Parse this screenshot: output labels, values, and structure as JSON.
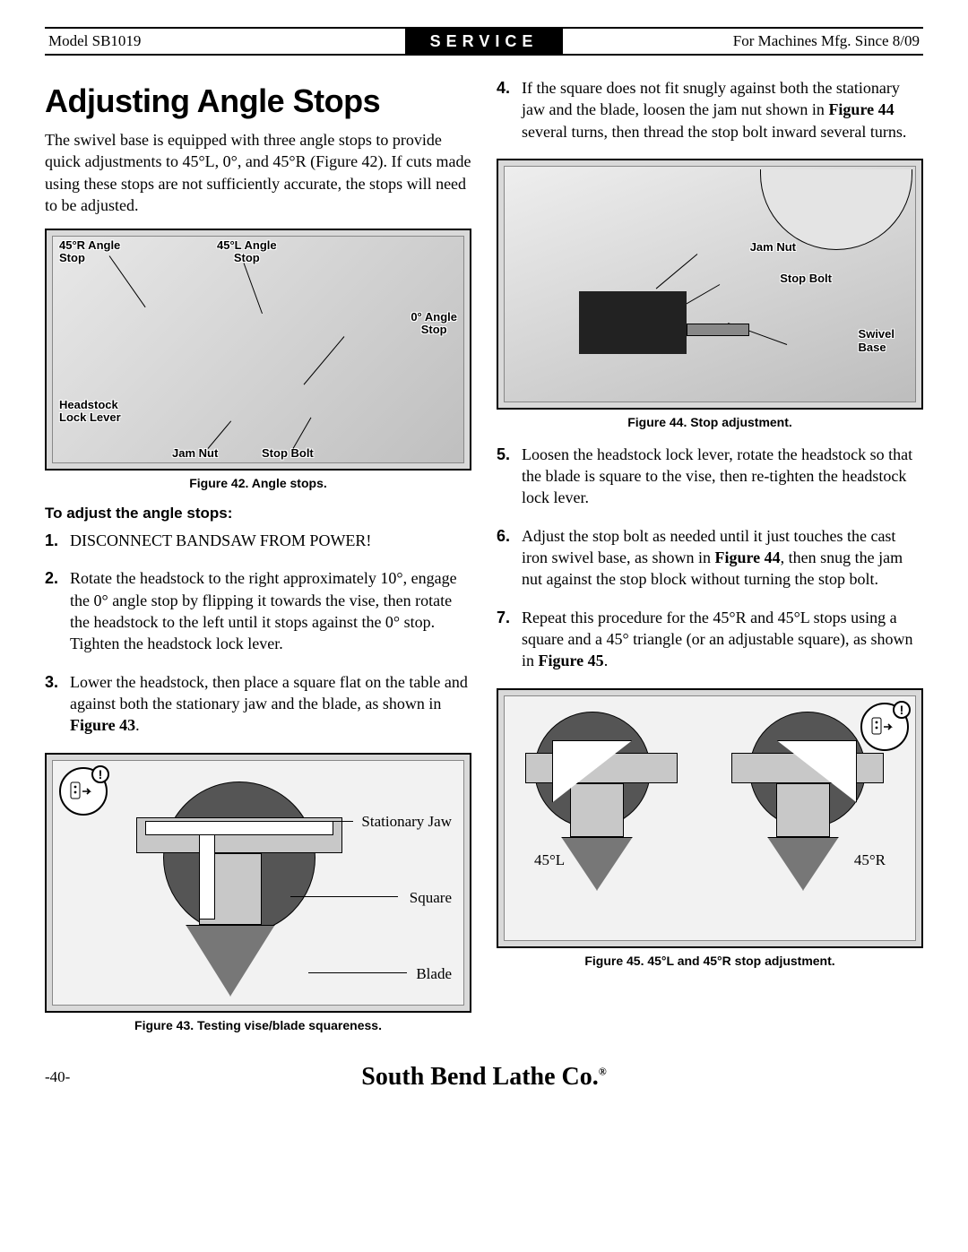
{
  "header": {
    "model": "Model SB1019",
    "center": "SERVICE",
    "mfg": "For Machines Mfg. Since 8/09"
  },
  "title": "Adjusting Angle Stops",
  "intro": "The swivel base is equipped with three angle stops to provide quick adjustments to 45°L, 0°, and 45°R (Figure 42). If cuts made using these stops are not sufficiently accurate, the stops will need to be adjusted.",
  "figures": {
    "fig42": {
      "caption": "Figure 42. Angle stops.",
      "labels": {
        "l45r": "45°R Angle\nStop",
        "l45l": "45°L Angle\nStop",
        "l0": "0° Angle\nStop",
        "headlock": "Headstock\nLock Lever",
        "jamnut": "Jam Nut",
        "stopbolt": "Stop Bolt"
      }
    },
    "fig43": {
      "caption": "Figure 43. Testing vise/blade squareness.",
      "labels": {
        "sj": "Stationary Jaw",
        "sq": "Square",
        "bl": "Blade"
      }
    },
    "fig44": {
      "caption": "Figure 44. Stop adjustment.",
      "labels": {
        "jamnut": "Jam Nut",
        "stopbolt": "Stop Bolt",
        "swivel": "Swivel\nBase"
      }
    },
    "fig45": {
      "caption": "Figure 45. 45°L and 45°R stop adjustment.",
      "labels": {
        "l": "45°L",
        "r": "45°R"
      }
    }
  },
  "subhead": "To adjust the angle stops:",
  "steps_left": [
    {
      "n": "1.",
      "t": "DISCONNECT BANDSAW FROM POWER!"
    },
    {
      "n": "2.",
      "t": "Rotate the headstock to the right approximately 10°, engage the 0° angle stop by flipping it towards the vise, then rotate the headstock to the left until it stops against the 0° stop. Tighten the headstock lock lever."
    },
    {
      "n": "3.",
      "t": "Lower the headstock, then place a square flat on the table and against both the stationary jaw and the blade, as shown in <b>Figure 43</b>."
    }
  ],
  "steps_right": [
    {
      "n": "4.",
      "t": "If the square does not fit snugly against both the stationary jaw and the blade, loosen the jam nut shown in <b>Figure 44</b> several turns, then thread the stop bolt inward several turns."
    },
    {
      "n": "5.",
      "t": "Loosen the headstock lock lever, rotate the headstock so that the blade is square to the vise, then re-tighten the headstock lock lever."
    },
    {
      "n": "6.",
      "t": "Adjust the stop bolt as needed until it just touches the cast iron swivel base, as shown in <b>Figure 44</b>, then snug the jam nut against the stop block without turning the stop bolt."
    },
    {
      "n": "7.",
      "t": "Repeat this procedure for the 45°R and 45°L stops using a square and a 45° triangle (or an adjustable square), as shown in <b>Figure 45</b>."
    }
  ],
  "footer": {
    "page": "-40-",
    "brand": "South Bend Lathe Co.",
    "reg": "®"
  }
}
